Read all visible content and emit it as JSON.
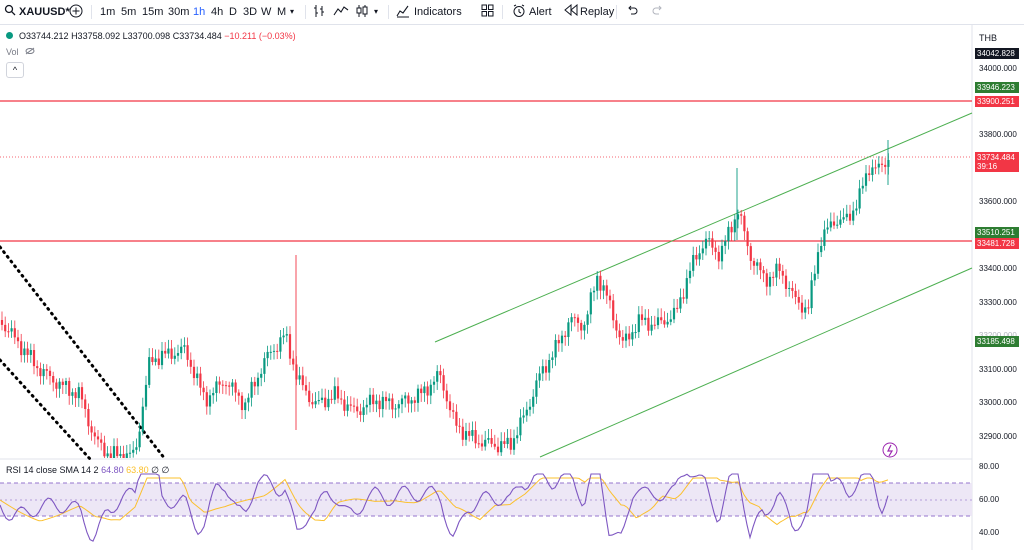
{
  "toolbar": {
    "symbol": "XAUUSD*",
    "intervals": [
      "1m",
      "5m",
      "15m",
      "30m",
      "1h",
      "4h",
      "D",
      "3D",
      "W",
      "M"
    ],
    "active_interval": "1h",
    "indicators_label": "Indicators",
    "alert_label": "Alert",
    "replay_label": "Replay"
  },
  "legend": {
    "open": "O33744.212",
    "high": "H33758.092",
    "low": "L33700.098",
    "close": "C33734.484",
    "change": "−10.211 (−0.03%)",
    "vol_label": "Vol",
    "collapse_symbol": "^"
  },
  "price_axis": {
    "currency": "THB",
    "ticks": [
      "34000.000",
      "33800.000",
      "33600.000",
      "33400.000",
      "33300.000",
      "33200.000",
      "33100.000",
      "33000.000",
      "32900.000"
    ],
    "top_label": "34042.828",
    "levels": [
      {
        "value": "33946.223",
        "color": "#2e7d32"
      },
      {
        "value": "33900.251",
        "color": "#f23645"
      },
      {
        "value": "33510.251",
        "color": "#2e7d32"
      },
      {
        "value": "33481.728",
        "color": "#f23645"
      },
      {
        "value": "33185.498",
        "color": "#2e7d32"
      }
    ],
    "current_price": "33734.484",
    "countdown": "39:16"
  },
  "rsi": {
    "legend": "RSI 14 close SMA 14 2",
    "value1": "64.80",
    "value2": "63.80",
    "extra": "∅ ∅",
    "ticks": [
      "80.00",
      "60.00",
      "40.00"
    ]
  },
  "colors": {
    "up": "#089981",
    "down": "#f23645",
    "channel": "#4caf50",
    "rsi": "#7e57c2",
    "rsi_ma": "#fbc02d"
  }
}
